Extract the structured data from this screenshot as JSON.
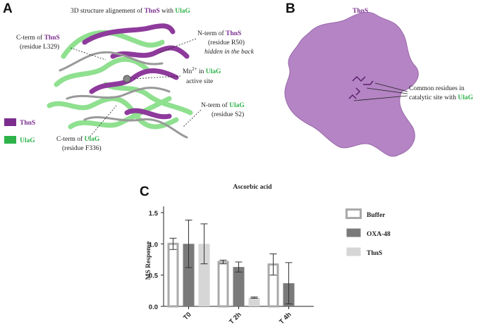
{
  "panels": {
    "a": {
      "label": "A",
      "title": [
        "3D structure alignement of ",
        "ThnS",
        " with ",
        "UlaG"
      ],
      "c_term_thns": [
        [
          "C-term of ",
          "ThnS"
        ],
        [
          "(residue L329)"
        ]
      ],
      "n_term_thns": [
        [
          "N-term of ",
          "ThnS"
        ],
        [
          "(residue R50)"
        ],
        [
          "hidden in the back"
        ]
      ],
      "mn": [
        [
          "Mn",
          "2+",
          " in ",
          "UlaG"
        ],
        [
          "active site"
        ]
      ],
      "n_term_ulag": [
        [
          "N-term of ",
          "UlaG"
        ],
        [
          "(residue S2)"
        ]
      ],
      "c_term_ulag": [
        [
          "C-term of ",
          "UlaG"
        ],
        [
          "(residue F336)"
        ]
      ],
      "legend": [
        "ThnS",
        "UlaG"
      ]
    },
    "b": {
      "label": "B",
      "title": "ThnS",
      "annotation": [
        [
          "Common residues in"
        ],
        [
          "catalytic site with ",
          "UlaG"
        ]
      ]
    },
    "c": {
      "label": "C"
    }
  },
  "chart_data": {
    "type": "bar",
    "title": "Ascorbic acid",
    "y_label": "MS Response",
    "categories": [
      "T0",
      "T 2h",
      "T 4h"
    ],
    "series": [
      {
        "name": "Buffer",
        "color": "#a9a9a9",
        "style": "outline",
        "values": [
          1.0,
          0.71,
          0.67
        ],
        "errors": [
          0.09,
          0.03,
          0.17
        ]
      },
      {
        "name": "OXA-48",
        "color": "#7a7a7a",
        "style": "filled",
        "values": [
          1.0,
          0.63,
          0.37
        ],
        "errors": [
          0.38,
          0.08,
          0.33
        ]
      },
      {
        "name": "ThnS",
        "color": "#d6d6d6",
        "style": "filled",
        "name_color": "#7b2d8e",
        "values": [
          1.0,
          0.14,
          null
        ],
        "errors": [
          0.32,
          0.01,
          null
        ]
      }
    ],
    "ylim": [
      0,
      1.6
    ],
    "yticks": [
      {
        "value": 0,
        "label": "0.0"
      },
      0.5,
      {
        "value": 1,
        "label": "1.0"
      },
      1.5
    ],
    "legend": "right"
  }
}
